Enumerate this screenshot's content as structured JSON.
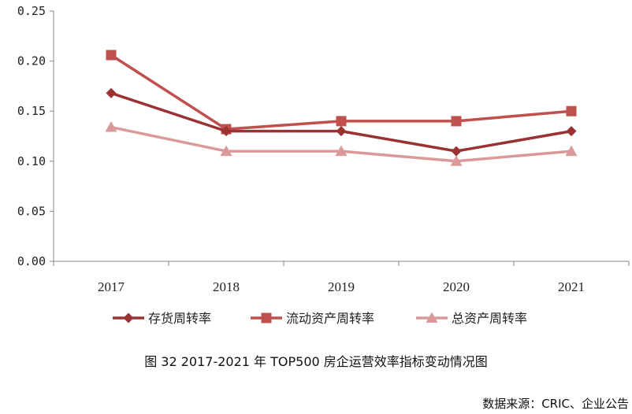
{
  "chart_data": {
    "type": "line",
    "x": [
      "2017",
      "2018",
      "2019",
      "2020",
      "2021"
    ],
    "ylim": [
      0,
      0.25
    ],
    "yticks": [
      "0.00",
      "0.05",
      "0.10",
      "0.15",
      "0.20",
      "0.25"
    ],
    "grid": false,
    "legend_position": "bottom",
    "series": [
      {
        "name": "存货周转率",
        "values": [
          0.168,
          0.13,
          0.13,
          0.11,
          0.13
        ],
        "color": "#9b3232",
        "marker": "diamond"
      },
      {
        "name": "流动资产周转率",
        "values": [
          0.206,
          0.132,
          0.14,
          0.14,
          0.15
        ],
        "color": "#c0504d",
        "marker": "square"
      },
      {
        "name": "总资产周转率",
        "values": [
          0.134,
          0.11,
          0.11,
          0.1,
          0.11
        ],
        "color": "#d99a99",
        "marker": "triangle"
      }
    ]
  },
  "caption": "图 32 2017-2021 年 TOP500 房企运营效率指标变动情况图",
  "source": "数据来源：CRIC、企业公告"
}
